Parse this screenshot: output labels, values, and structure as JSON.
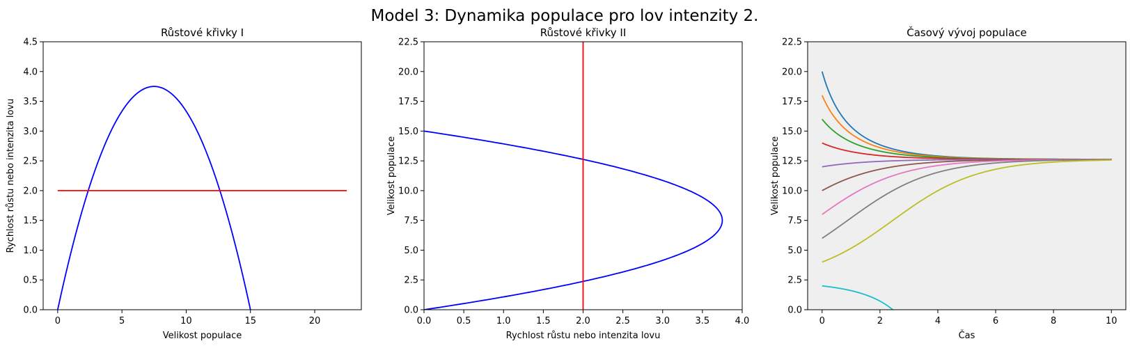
{
  "figure_title": "Model 3: Dynamika populace pro lov intenzity 2.",
  "chart_data": [
    {
      "type": "line",
      "title": "Růstové křivky I",
      "xlabel": "Velikost populace",
      "ylabel": "Rychlost růstu nebo intenzita lovu",
      "xlim": [
        -1.13,
        23.63
      ],
      "ylim": [
        0,
        4.5
      ],
      "xticks": [
        0,
        5,
        10,
        15,
        20
      ],
      "xtick_labels": [
        "0",
        "5",
        "10",
        "15",
        "20"
      ],
      "yticks": [
        0,
        0.5,
        1.0,
        1.5,
        2.0,
        2.5,
        3.0,
        3.5,
        4.0,
        4.5
      ],
      "ytick_labels": [
        "0.0",
        "0.5",
        "1.0",
        "1.5",
        "2.0",
        "2.5",
        "3.0",
        "3.5",
        "4.0",
        "4.5"
      ],
      "grid": false,
      "series": [
        {
          "color": "#0000ff",
          "x": [
            0,
            1,
            2,
            3,
            4,
            5,
            6,
            7,
            7.5,
            8,
            9,
            10,
            11,
            12,
            13,
            14,
            15
          ],
          "y": [
            0,
            0.93,
            1.73,
            2.4,
            2.93,
            3.33,
            3.6,
            3.73,
            3.75,
            3.73,
            3.6,
            3.33,
            2.93,
            2.4,
            1.73,
            0.93,
            0
          ]
        },
        {
          "color": "#ff0000",
          "x": [
            0,
            22.5
          ],
          "y": [
            2,
            2
          ]
        }
      ]
    },
    {
      "type": "line",
      "title": "Růstové křivky II",
      "xlabel": "Rychlost růstu nebo intenzita lovu",
      "ylabel": "Velikost populace",
      "xlim": [
        0,
        4.0
      ],
      "ylim": [
        0,
        22.5
      ],
      "xticks": [
        0,
        0.5,
        1.0,
        1.5,
        2.0,
        2.5,
        3.0,
        3.5,
        4.0
      ],
      "xtick_labels": [
        "0.0",
        "0.5",
        "1.0",
        "1.5",
        "2.0",
        "2.5",
        "3.0",
        "3.5",
        "4.0"
      ],
      "yticks": [
        0,
        2.5,
        5.0,
        7.5,
        10.0,
        12.5,
        15.0,
        17.5,
        20.0,
        22.5
      ],
      "ytick_labels": [
        "0.0",
        "2.5",
        "5.0",
        "7.5",
        "10.0",
        "12.5",
        "15.0",
        "17.5",
        "20.0",
        "22.5"
      ],
      "grid": false,
      "series": [
        {
          "color": "#0000ff",
          "x": [
            0,
            0.93,
            1.73,
            2.4,
            2.93,
            3.33,
            3.6,
            3.73,
            3.75,
            3.73,
            3.6,
            3.33,
            2.93,
            2.4,
            1.73,
            0.93,
            0
          ],
          "y": [
            0,
            1,
            2,
            3,
            4,
            5,
            6,
            7,
            7.5,
            8,
            9,
            10,
            11,
            12,
            13,
            14,
            15
          ]
        },
        {
          "color": "#ff0000",
          "x": [
            2,
            2
          ],
          "y": [
            0,
            22.5
          ]
        }
      ]
    },
    {
      "type": "line",
      "title": "Časový vývoj populace",
      "xlabel": "Čas",
      "ylabel": "Velikost populace",
      "xlim": [
        -0.5,
        10.5
      ],
      "ylim": [
        0,
        22.5
      ],
      "xticks": [
        0,
        2,
        4,
        6,
        8,
        10
      ],
      "xtick_labels": [
        "0",
        "2",
        "4",
        "6",
        "8",
        "10"
      ],
      "yticks": [
        0,
        2.5,
        5.0,
        7.5,
        10.0,
        12.5,
        15.0,
        17.5,
        20.0,
        22.5
      ],
      "ytick_labels": [
        "0.0",
        "2.5",
        "5.0",
        "7.5",
        "10.0",
        "12.5",
        "15.0",
        "17.5",
        "20.0",
        "22.5"
      ],
      "grid": false,
      "background": "#efefef",
      "model": {
        "r": 1,
        "K": 15,
        "h": 2,
        "t_end": 10
      },
      "series": [
        {
          "initial": 20,
          "color": "#1f77b4"
        },
        {
          "initial": 18,
          "color": "#ff7f0e"
        },
        {
          "initial": 16,
          "color": "#2ca02c"
        },
        {
          "initial": 14,
          "color": "#d62728"
        },
        {
          "initial": 12,
          "color": "#9467bd"
        },
        {
          "initial": 10,
          "color": "#8c564b"
        },
        {
          "initial": 8,
          "color": "#e377c2"
        },
        {
          "initial": 6,
          "color": "#7f7f7f"
        },
        {
          "initial": 4,
          "color": "#bcbd22"
        },
        {
          "initial": 2,
          "color": "#17becf"
        }
      ]
    }
  ]
}
